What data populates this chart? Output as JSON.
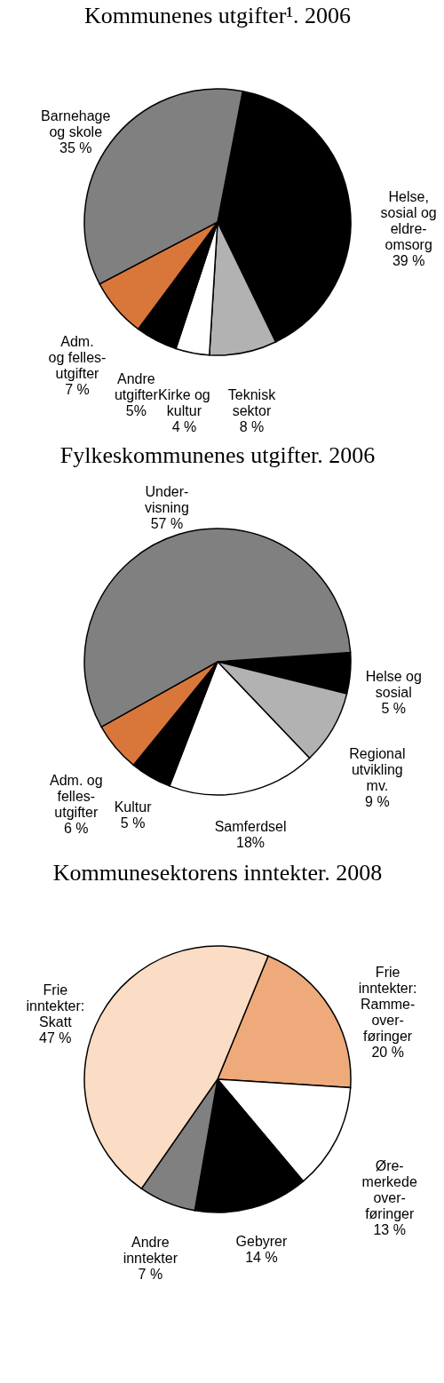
{
  "chart_data": [
    {
      "type": "pie",
      "title": "Kommunenes utgifter¹. 2006",
      "categories": [
        "Helse,\nsosial og\neldre-\nomsorg",
        "Teknisk\nsektor",
        "Kirke og\nkultur",
        "Andre\nutgifter",
        "Adm.\nog felles-\nutgifter",
        "Barnehage\nog skole"
      ],
      "values": [
        39,
        8,
        4,
        5,
        7,
        35
      ],
      "value_labels": [
        "39 %",
        "8 %",
        "4 %",
        "5%",
        "7 %",
        "35 %"
      ],
      "colors": [
        "#000000",
        "#b2b2b2",
        "#ffffff",
        "#000000",
        "#d9773a",
        "#808080"
      ]
    },
    {
      "type": "pie",
      "title": "Fylkeskommunenes utgifter. 2006",
      "categories": [
        "Helse og\nsosial",
        "Regional\nutvikling\nmv.",
        "Samferdsel",
        "Kultur",
        "Adm. og\nfelles-\nutgifter",
        "Under-\nvisning"
      ],
      "values": [
        5,
        9,
        18,
        5,
        6,
        57
      ],
      "value_labels": [
        "5 %",
        "9 %",
        "18%",
        "5 %",
        "6 %",
        "57 %"
      ],
      "colors": [
        "#000000",
        "#b2b2b2",
        "#ffffff",
        "#000000",
        "#d9773a",
        "#808080"
      ]
    },
    {
      "type": "pie",
      "title": "Kommunesektorens inntekter. 2008",
      "categories": [
        "Frie\ninntekter:\nRamme-\nover-\nføringer",
        "Øre-\nmerkede\nover-\nføringer",
        "Gebyrer",
        "Andre\ninntekter",
        "Frie\ninntekter:\nSkatt"
      ],
      "values": [
        20,
        13,
        14,
        7,
        47
      ],
      "value_labels": [
        "20 %",
        "13 %",
        "14 %",
        "7 %",
        "47 %"
      ],
      "colors": [
        "#eeaa7a",
        "#ffffff",
        "#000000",
        "#808080",
        "#fbdcc4"
      ]
    }
  ]
}
